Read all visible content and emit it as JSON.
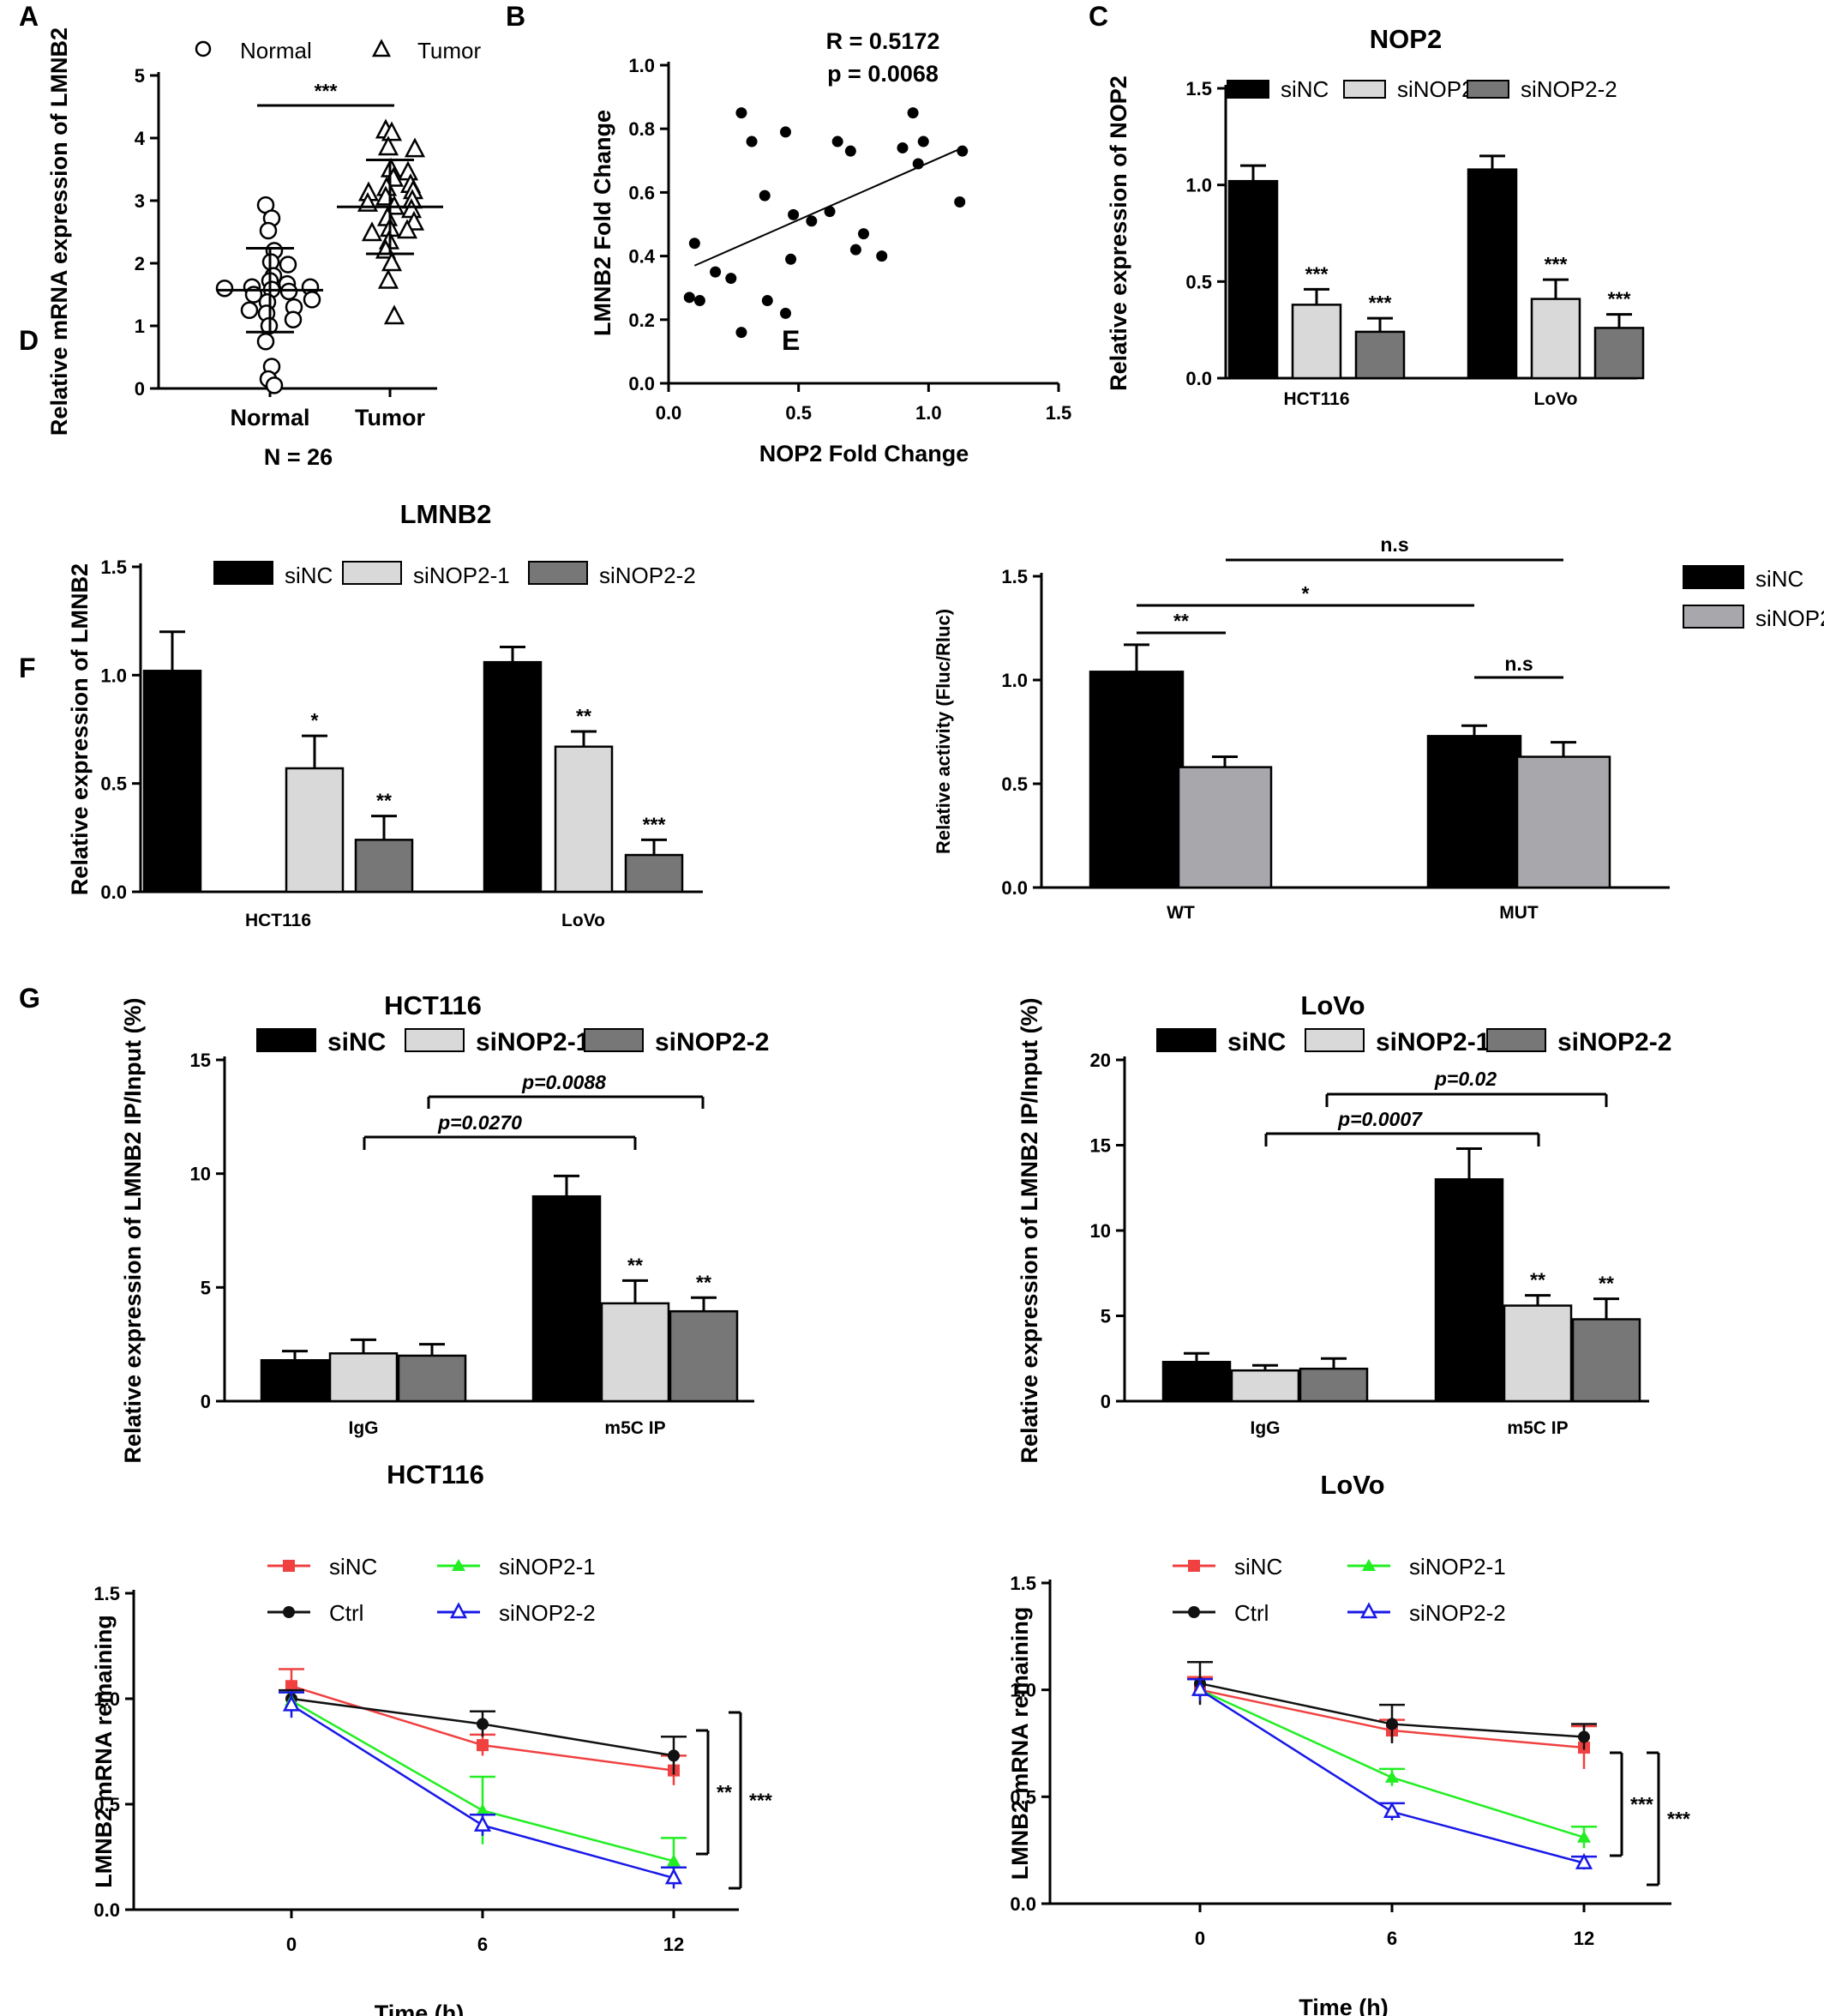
{
  "panel_labels": [
    "A",
    "B",
    "C",
    "D",
    "E",
    "F",
    "G"
  ],
  "chart_data": [
    {
      "id": "A",
      "type": "scatter",
      "ylabel": "Relative mRNA expression of LMNB2",
      "categories": [
        "Normal",
        "Tumor"
      ],
      "legend": [
        "Normal",
        "Tumor"
      ],
      "footnote": "N = 26",
      "ylim": [
        0,
        5
      ],
      "yticks": [
        "0",
        "1",
        "2",
        "3",
        "4",
        "5"
      ],
      "series": [
        {
          "name": "Normal",
          "marker": "circle",
          "mean": 1.57,
          "sd_low": 0.9,
          "sd_high": 2.24,
          "values": [
            2.93,
            2.72,
            2.52,
            2.2,
            2.02,
            1.98,
            1.8,
            1.72,
            1.67,
            1.62,
            1.62,
            1.6,
            1.58,
            1.55,
            1.5,
            1.42,
            1.38,
            1.3,
            1.25,
            1.2,
            1.1,
            1.0,
            0.75,
            0.35,
            0.15,
            0.05
          ]
        },
        {
          "name": "Tumor",
          "marker": "triangle",
          "mean": 2.9,
          "sd_low": 2.15,
          "sd_high": 3.65,
          "values": [
            4.12,
            4.08,
            3.85,
            3.82,
            3.5,
            3.45,
            3.35,
            3.25,
            3.2,
            3.15,
            3.12,
            3.05,
            3.0,
            2.95,
            2.9,
            2.85,
            2.72,
            2.65,
            2.55,
            2.52,
            2.48,
            2.35,
            2.2,
            2.0,
            1.72,
            1.15
          ]
        }
      ],
      "annotations": [
        "***"
      ]
    },
    {
      "id": "B",
      "type": "scatter",
      "xlabel": "NOP2 Fold Change",
      "ylabel": "LMNB2 Fold Change",
      "stats": [
        "R = 0.5172",
        "p = 0.0068"
      ],
      "xlim": [
        0,
        1.5
      ],
      "ylim": [
        0,
        1.0
      ],
      "xticks": [
        "0.0",
        "0.5",
        "1.0",
        "1.5"
      ],
      "yticks": [
        "0.0",
        "0.2",
        "0.4",
        "0.6",
        "0.8",
        "1.0"
      ],
      "points": [
        [
          0.1,
          0.44
        ],
        [
          0.08,
          0.27
        ],
        [
          0.12,
          0.26
        ],
        [
          0.18,
          0.35
        ],
        [
          0.24,
          0.33
        ],
        [
          0.28,
          0.85
        ],
        [
          0.28,
          0.16
        ],
        [
          0.32,
          0.76
        ],
        [
          0.37,
          0.59
        ],
        [
          0.38,
          0.26
        ],
        [
          0.45,
          0.79
        ],
        [
          0.45,
          0.22
        ],
        [
          0.48,
          0.53
        ],
        [
          0.47,
          0.39
        ],
        [
          0.55,
          0.51
        ],
        [
          0.62,
          0.54
        ],
        [
          0.65,
          0.76
        ],
        [
          0.7,
          0.73
        ],
        [
          0.72,
          0.42
        ],
        [
          0.75,
          0.47
        ],
        [
          0.82,
          0.4
        ],
        [
          0.9,
          0.74
        ],
        [
          0.94,
          0.85
        ],
        [
          0.98,
          0.76
        ],
        [
          1.13,
          0.73
        ],
        [
          1.12,
          0.57
        ],
        [
          0.96,
          0.69
        ]
      ],
      "fit": [
        [
          0.1,
          0.37
        ],
        [
          1.13,
          0.74
        ]
      ]
    },
    {
      "id": "C",
      "type": "bar",
      "title": "NOP2",
      "ylabel": "Relative expression of NOP2",
      "categories": [
        "HCT116",
        "LoVo"
      ],
      "ylim": [
        0,
        1.5
      ],
      "yticks": [
        "0.0",
        "0.5",
        "1.0",
        "1.5"
      ],
      "series": [
        {
          "name": "siNC",
          "values": [
            1.02,
            1.08
          ],
          "err": [
            0.08,
            0.07
          ],
          "stars": [
            "",
            ""
          ]
        },
        {
          "name": "siNOP2-1",
          "values": [
            0.38,
            0.41
          ],
          "err": [
            0.08,
            0.1
          ],
          "stars": [
            "***",
            "***"
          ]
        },
        {
          "name": "siNOP2-2",
          "values": [
            0.24,
            0.26
          ],
          "err": [
            0.07,
            0.07
          ],
          "stars": [
            "***",
            "***"
          ]
        }
      ]
    },
    {
      "id": "D",
      "type": "bar",
      "title": "LMNB2",
      "ylabel": "Relative expression of LMNB2",
      "categories": [
        "HCT116",
        "LoVo"
      ],
      "ylim": [
        0,
        1.5
      ],
      "yticks": [
        "0.0",
        "0.5",
        "1.0",
        "1.5"
      ],
      "series": [
        {
          "name": "siNC",
          "values": [
            1.02,
            1.06
          ],
          "err": [
            0.18,
            0.07
          ],
          "stars": [
            "",
            ""
          ]
        },
        {
          "name": "siNOP2-1",
          "values": [
            0.57,
            0.67
          ],
          "err": [
            0.15,
            0.07
          ],
          "stars": [
            "*",
            "**"
          ]
        },
        {
          "name": "siNOP2-2",
          "values": [
            0.24,
            0.17
          ],
          "err": [
            0.11,
            0.07
          ],
          "stars": [
            "**",
            "***"
          ]
        }
      ]
    },
    {
      "id": "E",
      "type": "bar",
      "ylabel": "Relative activity (Fluc/Rluc)",
      "categories": [
        "WT",
        "MUT"
      ],
      "ylim": [
        0,
        1.5
      ],
      "yticks": [
        "0.0",
        "0.5",
        "1.0",
        "1.5"
      ],
      "series": [
        {
          "name": "siNC",
          "values": [
            1.04,
            0.73
          ],
          "err": [
            0.13,
            0.05
          ]
        },
        {
          "name": "siNOP2",
          "values": [
            0.58,
            0.63
          ],
          "err": [
            0.05,
            0.07
          ]
        }
      ],
      "comparisons": [
        "**",
        "*",
        "n.s",
        "n.s"
      ]
    },
    {
      "id": "F1",
      "type": "bar",
      "title": "HCT116",
      "ylabel": "Relative expression of LMNB2 IP/Input (%)",
      "categories": [
        "IgG",
        "m5C IP"
      ],
      "ylim": [
        0,
        15
      ],
      "yticks": [
        "0",
        "5",
        "10",
        "15"
      ],
      "series": [
        {
          "name": "siNC",
          "values": [
            1.8,
            9.0
          ],
          "err": [
            0.4,
            0.9
          ],
          "stars": [
            "",
            ""
          ]
        },
        {
          "name": "siNOP2-1",
          "values": [
            2.1,
            4.3
          ],
          "err": [
            0.6,
            1.0
          ],
          "stars": [
            "",
            "**"
          ]
        },
        {
          "name": "siNOP2-2",
          "values": [
            2.0,
            3.95
          ],
          "err": [
            0.5,
            0.6
          ],
          "stars": [
            "",
            "**"
          ]
        }
      ],
      "comparisons": [
        "p=0.0088",
        "p=0.0270"
      ]
    },
    {
      "id": "F2",
      "type": "bar",
      "title": "LoVo",
      "ylabel": "Relative expression of LMNB2 IP/Input (%)",
      "categories": [
        "IgG",
        "m5C IP"
      ],
      "ylim": [
        0,
        20
      ],
      "yticks": [
        "0",
        "5",
        "10",
        "15",
        "20"
      ],
      "series": [
        {
          "name": "siNC",
          "values": [
            2.3,
            13.0
          ],
          "err": [
            0.5,
            1.8
          ],
          "stars": [
            "",
            ""
          ]
        },
        {
          "name": "siNOP2-1",
          "values": [
            1.8,
            5.6
          ],
          "err": [
            0.3,
            0.6
          ],
          "stars": [
            "",
            "**"
          ]
        },
        {
          "name": "siNOP2-2",
          "values": [
            1.9,
            4.8
          ],
          "err": [
            0.6,
            1.2
          ],
          "stars": [
            "",
            "**"
          ]
        }
      ],
      "comparisons": [
        "p=0.02",
        "p=0.0007"
      ]
    },
    {
      "id": "G1",
      "type": "line",
      "title": "HCT116",
      "xlabel": "Time (h)",
      "ylabel": "LMNB2 mRNA remaining",
      "x": [
        0,
        6,
        12
      ],
      "xticks": [
        "0",
        "6",
        "12"
      ],
      "ylim": [
        0,
        1.5
      ],
      "yticks": [
        "0.0",
        "0.5",
        "1.0",
        "1.5"
      ],
      "series": [
        {
          "name": "siNC",
          "color": "#f04040",
          "marker": "square",
          "values": [
            1.06,
            0.78,
            0.66
          ],
          "err": [
            0.08,
            0.05,
            0.07
          ]
        },
        {
          "name": "Ctrl",
          "color": "#111111",
          "marker": "circle",
          "values": [
            1.0,
            0.88,
            0.73
          ],
          "err": [
            0.04,
            0.06,
            0.09
          ]
        },
        {
          "name": "siNOP2-1",
          "color": "#22ee22",
          "marker": "triangle",
          "values": [
            0.99,
            0.47,
            0.23
          ],
          "err": [
            0.04,
            0.16,
            0.11
          ]
        },
        {
          "name": "siNOP2-2",
          "color": "#1818e8",
          "marker": "triangle-open",
          "values": [
            0.97,
            0.4,
            0.15
          ],
          "err": [
            0.06,
            0.05,
            0.05
          ]
        }
      ],
      "annotations": [
        "**",
        "***"
      ]
    },
    {
      "id": "G2",
      "type": "line",
      "title": "LoVo",
      "xlabel": "Time (h)",
      "ylabel": "LMNB2 mRNA remaining",
      "x": [
        0,
        6,
        12
      ],
      "xticks": [
        "0",
        "6",
        "12"
      ],
      "ylim": [
        0,
        1.5
      ],
      "yticks": [
        "0.0",
        "0.5",
        "1.0",
        "1.5"
      ],
      "series": [
        {
          "name": "siNC",
          "color": "#f04040",
          "marker": "square",
          "values": [
            1.0,
            0.81,
            0.73
          ],
          "err": [
            0.06,
            0.05,
            0.1
          ]
        },
        {
          "name": "Ctrl",
          "color": "#111111",
          "marker": "circle",
          "values": [
            1.03,
            0.84,
            0.78
          ],
          "err": [
            0.1,
            0.09,
            0.06
          ]
        },
        {
          "name": "siNOP2-1",
          "color": "#22ee22",
          "marker": "triangle",
          "values": [
            1.0,
            0.59,
            0.31
          ],
          "err": [
            0.05,
            0.04,
            0.05
          ]
        },
        {
          "name": "siNOP2-2",
          "color": "#1818e8",
          "marker": "triangle-open",
          "values": [
            1.0,
            0.43,
            0.19
          ],
          "err": [
            0.05,
            0.04,
            0.03
          ]
        }
      ],
      "annotations": [
        "***",
        "***"
      ]
    }
  ]
}
